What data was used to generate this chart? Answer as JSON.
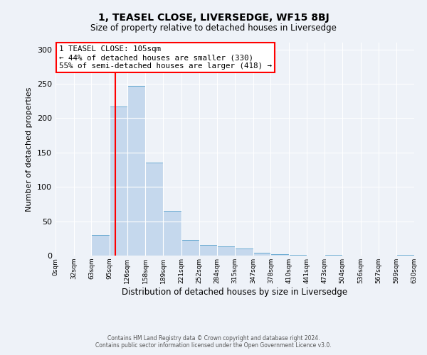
{
  "title": "1, TEASEL CLOSE, LIVERSEDGE, WF15 8BJ",
  "subtitle": "Size of property relative to detached houses in Liversedge",
  "xlabel": "Distribution of detached houses by size in Liversedge",
  "ylabel": "Number of detached properties",
  "bar_color": "#c5d8ed",
  "bar_edge_color": "#6aabd2",
  "background_color": "#eef2f8",
  "grid_color": "#ffffff",
  "red_line_x": 105,
  "bins": [
    0,
    32,
    63,
    95,
    126,
    158,
    189,
    221,
    252,
    284,
    315,
    347,
    378,
    410,
    441,
    473,
    504,
    536,
    567,
    599,
    630
  ],
  "bin_labels": [
    "0sqm",
    "32sqm",
    "63sqm",
    "95sqm",
    "126sqm",
    "158sqm",
    "189sqm",
    "221sqm",
    "252sqm",
    "284sqm",
    "315sqm",
    "347sqm",
    "378sqm",
    "410sqm",
    "441sqm",
    "473sqm",
    "504sqm",
    "536sqm",
    "567sqm",
    "599sqm",
    "630sqm"
  ],
  "values": [
    0,
    0,
    30,
    217,
    247,
    135,
    65,
    23,
    15,
    13,
    10,
    4,
    2,
    1,
    0,
    1,
    0,
    0,
    0,
    1
  ],
  "ylim": [
    0,
    310
  ],
  "yticks": [
    0,
    50,
    100,
    150,
    200,
    250,
    300
  ],
  "annotation_text1": "1 TEASEL CLOSE: 105sqm",
  "annotation_text2": "← 44% of detached houses are smaller (330)",
  "annotation_text3": "55% of semi-detached houses are larger (418) →",
  "footer1": "Contains HM Land Registry data © Crown copyright and database right 2024.",
  "footer2": "Contains public sector information licensed under the Open Government Licence v3.0."
}
